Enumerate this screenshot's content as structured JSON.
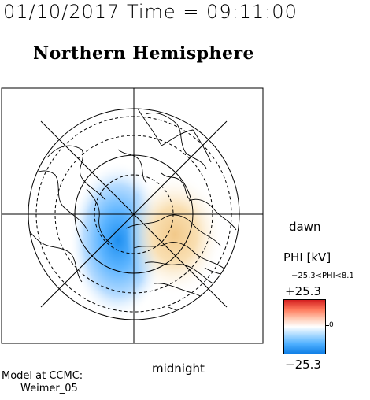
{
  "header": {
    "timestamp": "01/10/2017 Time = 09:11:00",
    "title": "Northern Hemisphere"
  },
  "map": {
    "projection": "polar",
    "orientation_labels": {
      "dawn": "dawn",
      "midnight": "midnight"
    },
    "potential_pattern": {
      "dawn_cell": "negative (blue)",
      "dusk_cell": "positive (orange)"
    }
  },
  "legend": {
    "title": "PHI [kV]",
    "range_text": "−25.3<PHI<8.1",
    "max_label": "+25.3",
    "zero_label": "0",
    "min_label": "−25.3",
    "colors": {
      "max": "#d42020",
      "zero": "#ffffff",
      "min": "#0f7fe6"
    }
  },
  "footer": {
    "model_line1": "Model at CCMC:",
    "model_line2": "Weimer_05"
  }
}
